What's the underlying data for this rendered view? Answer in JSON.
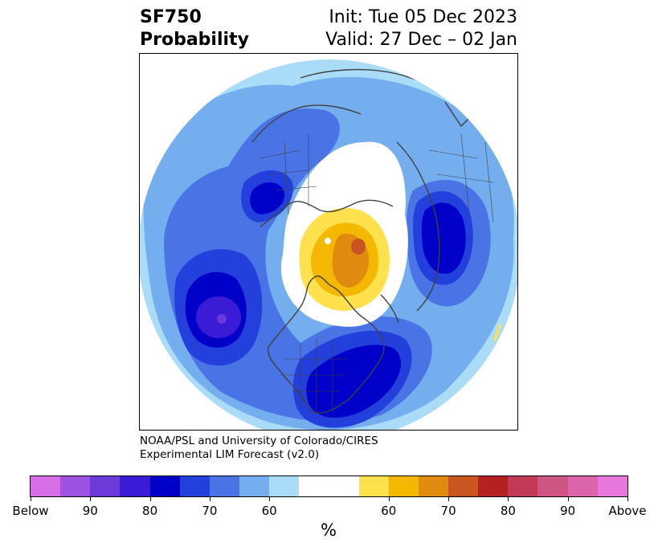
{
  "title": {
    "variable": "SF750",
    "field": "Probability",
    "init": "Init: Tue 05 Dec 2023",
    "valid": "Valid: 27 Dec – 02 Jan"
  },
  "credit": {
    "line1": "NOAA/PSL and University of Colorado/CIRES",
    "line2": "Experimental LIM Forecast (v2.0)"
  },
  "colorbar": {
    "colors": [
      "#d66ee6",
      "#9e52e0",
      "#6b3ad9",
      "#3a1bd6",
      "#0000c8",
      "#2340dc",
      "#4a74e6",
      "#74aeef",
      "#aadcf8",
      "#ffffff",
      "#ffffff",
      "#ffe14d",
      "#f5b800",
      "#e08a10",
      "#c95520",
      "#b52020",
      "#c23a55",
      "#cf5585",
      "#dc64ab",
      "#e878dc"
    ],
    "tick_labels": [
      "Below",
      "90",
      "80",
      "70",
      "60",
      "60",
      "70",
      "80",
      "90",
      "Above"
    ],
    "units": "%"
  },
  "map": {
    "projection": "north-polar-stereographic",
    "colors": {
      "land_lines": "#404040",
      "blue_light": "#aadcf8",
      "blue_mid": "#74aeef",
      "blue_strong": "#4a74e6",
      "blue_deep": "#2340dc",
      "blue_dark": "#0000c8",
      "purple": "#3a1bd6",
      "violet": "#6b3ad9",
      "yellow": "#ffe14d",
      "gold": "#f5b800",
      "orange": "#e08a10",
      "red_orange": "#c95520"
    }
  }
}
